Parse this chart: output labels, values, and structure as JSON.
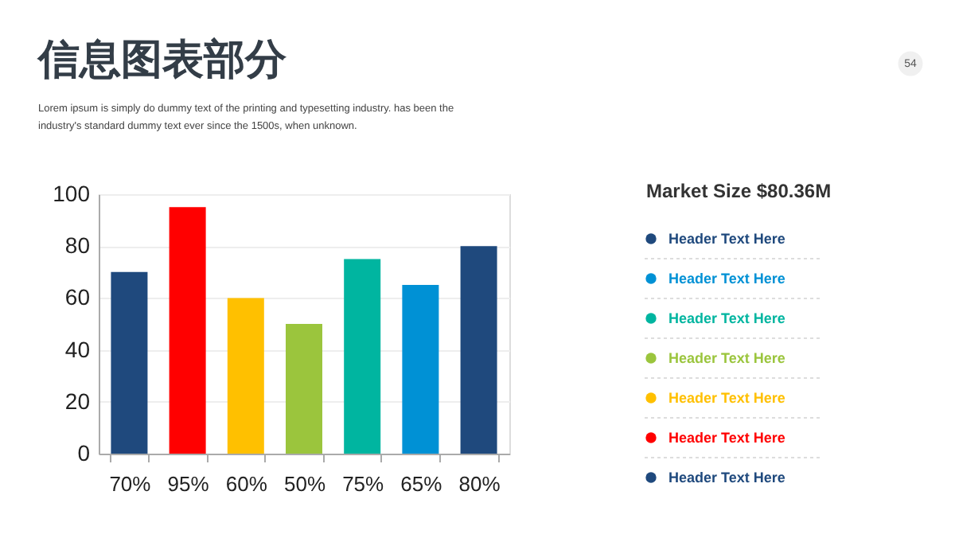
{
  "chart_data": {
    "type": "bar",
    "title": "信息图表部分",
    "subtitle": "Lorem ipsum is simply do  dummy text of the printing and typesetting industry. has been the\nindustry's standard dummy text ever since the 1500s, when unknown.",
    "categories": [
      "70%",
      "95%",
      "60%",
      "50%",
      "75%",
      "65%",
      "80%"
    ],
    "values": [
      70,
      95,
      60,
      50,
      75,
      65,
      80
    ],
    "colors": [
      "#1f497d",
      "#ff0000",
      "#ffc000",
      "#9bc53d",
      "#00b5a0",
      "#0091d5",
      "#1f497d"
    ],
    "ylim": [
      0,
      100
    ],
    "yticks": [
      0,
      20,
      40,
      60,
      80,
      100
    ],
    "grid": "y",
    "annotations": [
      "54",
      "Market Size $80.36M",
      "Header Text Here",
      "Header Text Here",
      "Header Text Here",
      "Header Text Here",
      "Header Text Here",
      "Header Text Here",
      "Header Text Here"
    ]
  }
}
